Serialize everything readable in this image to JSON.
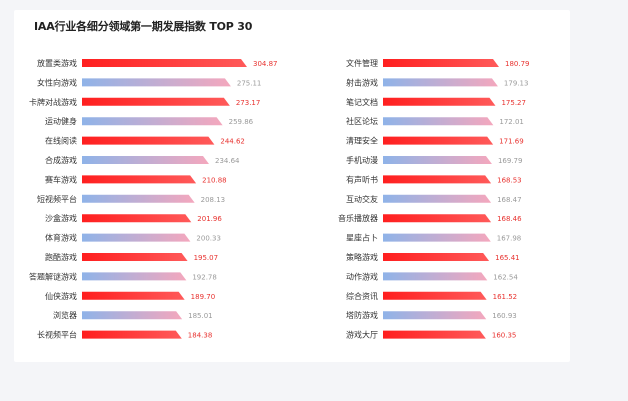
{
  "title": "IAA行业各细分领域第一期发展指数 TOP 30",
  "colors": {
    "red_start": "#ff2a2a",
    "red_end": "#ff6b6b",
    "blue_start": "#8fb3e8",
    "pink_end": "#f4a7bd",
    "red_value": "#e8322f",
    "gray_value": "#9a9a9a"
  },
  "chart_data": {
    "type": "bar",
    "orientation": "horizontal",
    "title": "IAA行业各细分领域第一期发展指数 TOP 30",
    "columns": [
      {
        "categories": [
          "放置类游戏",
          "女性向游戏",
          "卡牌对战游戏",
          "运动健身",
          "在线阅读",
          "合成游戏",
          "赛车游戏",
          "短视频平台",
          "沙盒游戏",
          "体育游戏",
          "跑酷游戏",
          "答题解谜游戏",
          "仙侠游戏",
          "浏览器",
          "长视频平台"
        ],
        "values": [
          304.87,
          275.11,
          273.17,
          259.86,
          244.62,
          234.64,
          210.88,
          208.13,
          201.96,
          200.33,
          195.07,
          192.78,
          189.7,
          185.01,
          184.38
        ]
      },
      {
        "categories": [
          "文件管理",
          "射击游戏",
          "笔记文档",
          "社区论坛",
          "清理安全",
          "手机动漫",
          "有声听书",
          "互动交友",
          "音乐播放器",
          "星座占卜",
          "策略游戏",
          "动作游戏",
          "综合资讯",
          "塔防游戏",
          "游戏大厅"
        ],
        "values": [
          180.79,
          179.13,
          175.27,
          172.01,
          171.69,
          169.79,
          168.53,
          168.47,
          168.46,
          167.98,
          165.41,
          162.54,
          161.52,
          160.93,
          160.35
        ]
      }
    ]
  }
}
